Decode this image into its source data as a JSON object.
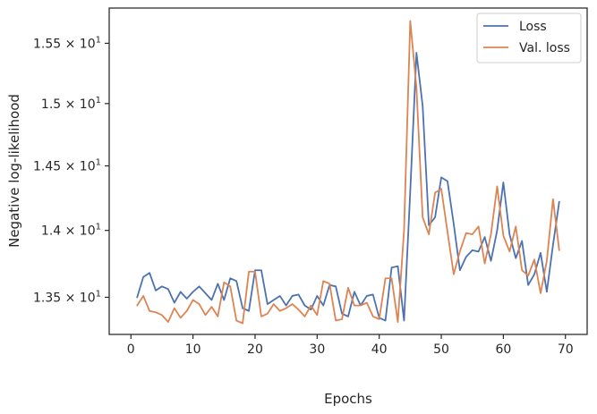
{
  "chart_data": {
    "type": "line",
    "xlabel": "Epochs",
    "ylabel": "Negative log-likelihood",
    "xlim": [
      -3.5,
      73.5
    ],
    "ylim": [
      13.23,
      15.8
    ],
    "y_scale": "log",
    "grid": false,
    "legend_position": "top-right",
    "x_ticks": [
      0,
      10,
      20,
      30,
      40,
      50,
      60,
      70
    ],
    "x_tick_labels": [
      "0",
      "10",
      "20",
      "30",
      "40",
      "50",
      "60",
      "70"
    ],
    "y_ticks": [
      13.5,
      14.0,
      14.5,
      15.0,
      15.5
    ],
    "y_tick_labels": [
      {
        "mantissa": "1.35",
        "times": "×",
        "base": "10",
        "exp": "1"
      },
      {
        "mantissa": "1.4",
        "times": "×",
        "base": "10",
        "exp": "1"
      },
      {
        "mantissa": "1.45",
        "times": "×",
        "base": "10",
        "exp": "1"
      },
      {
        "mantissa": "1.5",
        "times": "×",
        "base": "10",
        "exp": "1"
      },
      {
        "mantissa": "1.55",
        "times": "×",
        "base": "10",
        "exp": "1"
      }
    ],
    "x": [
      1,
      2,
      3,
      4,
      5,
      6,
      7,
      8,
      9,
      10,
      11,
      12,
      13,
      14,
      15,
      16,
      17,
      18,
      19,
      20,
      21,
      22,
      23,
      24,
      25,
      26,
      27,
      28,
      29,
      30,
      31,
      32,
      33,
      34,
      35,
      36,
      37,
      38,
      39,
      40,
      41,
      42,
      43,
      44,
      45,
      46,
      47,
      48,
      49,
      50,
      51,
      52,
      53,
      54,
      55,
      56,
      57,
      58,
      59,
      60,
      61,
      62,
      63,
      64,
      65,
      66,
      67,
      68,
      69
    ],
    "series": [
      {
        "name": "Loss",
        "color": "#4c72b0",
        "values": [
          13.5,
          13.65,
          13.68,
          13.55,
          13.58,
          13.56,
          13.46,
          13.54,
          13.49,
          13.54,
          13.58,
          13.53,
          13.48,
          13.6,
          13.48,
          13.64,
          13.62,
          13.42,
          13.4,
          13.7,
          13.7,
          13.45,
          13.48,
          13.51,
          13.44,
          13.51,
          13.52,
          13.44,
          13.41,
          13.51,
          13.44,
          13.59,
          13.58,
          13.38,
          13.36,
          13.54,
          13.44,
          13.51,
          13.52,
          13.35,
          13.33,
          13.72,
          13.73,
          13.33,
          14.3,
          15.42,
          14.98,
          14.04,
          14.1,
          14.41,
          14.38,
          14.05,
          13.7,
          13.8,
          13.85,
          13.84,
          13.95,
          13.77,
          14.0,
          14.37,
          13.97,
          13.79,
          13.92,
          13.59,
          13.67,
          13.83,
          13.54,
          13.89,
          14.22
        ]
      },
      {
        "name": "Val. loss",
        "color": "#dd8452",
        "values": [
          13.44,
          13.51,
          13.4,
          13.39,
          13.37,
          13.32,
          13.42,
          13.35,
          13.4,
          13.48,
          13.45,
          13.37,
          13.43,
          13.36,
          13.61,
          13.58,
          13.33,
          13.31,
          13.69,
          13.69,
          13.36,
          13.38,
          13.45,
          13.4,
          13.42,
          13.45,
          13.41,
          13.36,
          13.44,
          13.37,
          13.62,
          13.6,
          13.33,
          13.34,
          13.57,
          13.44,
          13.44,
          13.46,
          13.36,
          13.34,
          13.64,
          13.64,
          13.32,
          14.0,
          15.69,
          15.13,
          14.1,
          13.97,
          14.29,
          14.32,
          13.99,
          13.67,
          13.84,
          13.98,
          13.97,
          14.03,
          13.75,
          13.97,
          14.34,
          13.96,
          13.84,
          14.03,
          13.7,
          13.66,
          13.78,
          13.53,
          13.77,
          14.24,
          13.85
        ]
      }
    ]
  }
}
